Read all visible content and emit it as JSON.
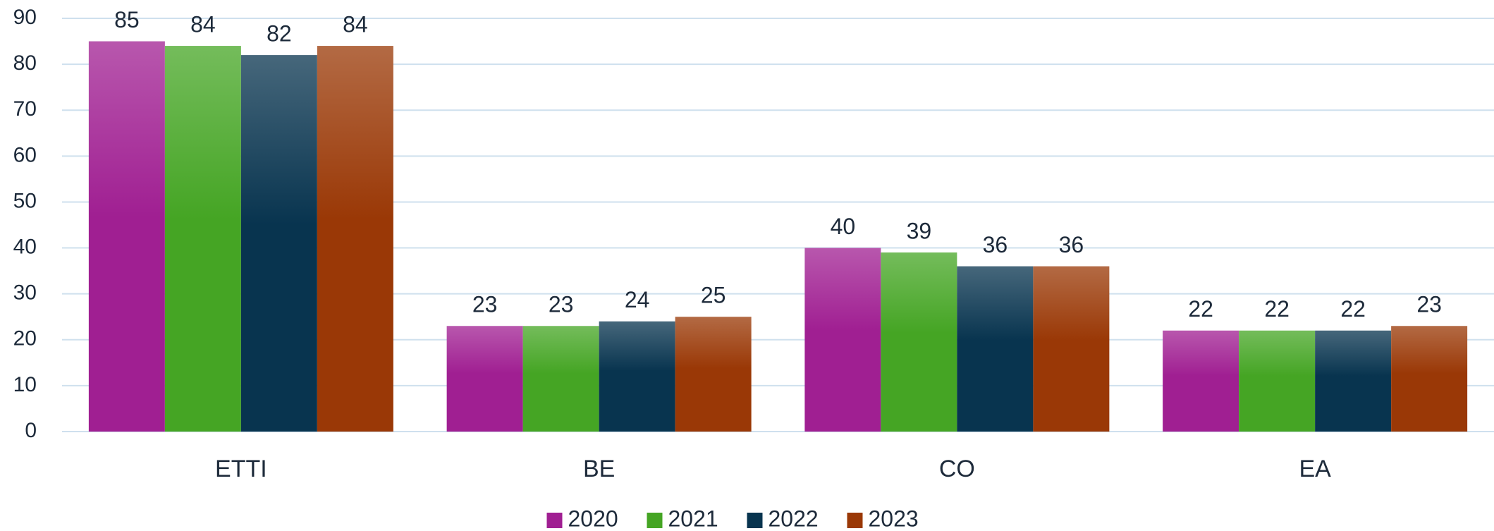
{
  "chart_data": {
    "type": "bar",
    "categories": [
      "ETTI",
      "BE",
      "CO",
      "EA"
    ],
    "series": [
      {
        "name": "2020",
        "color": "#a01f92",
        "values": [
          85,
          23,
          40,
          22
        ]
      },
      {
        "name": "2021",
        "color": "#45a524",
        "values": [
          84,
          23,
          39,
          22
        ]
      },
      {
        "name": "2022",
        "color": "#08344f",
        "values": [
          82,
          24,
          36,
          22
        ]
      },
      {
        "name": "2023",
        "color": "#9a3806",
        "values": [
          84,
          25,
          36,
          23
        ]
      }
    ],
    "ylim": [
      0,
      90
    ],
    "yticks": [
      0,
      10,
      20,
      30,
      40,
      50,
      60,
      70,
      80,
      90
    ],
    "grid": true,
    "legend": "bottom"
  }
}
